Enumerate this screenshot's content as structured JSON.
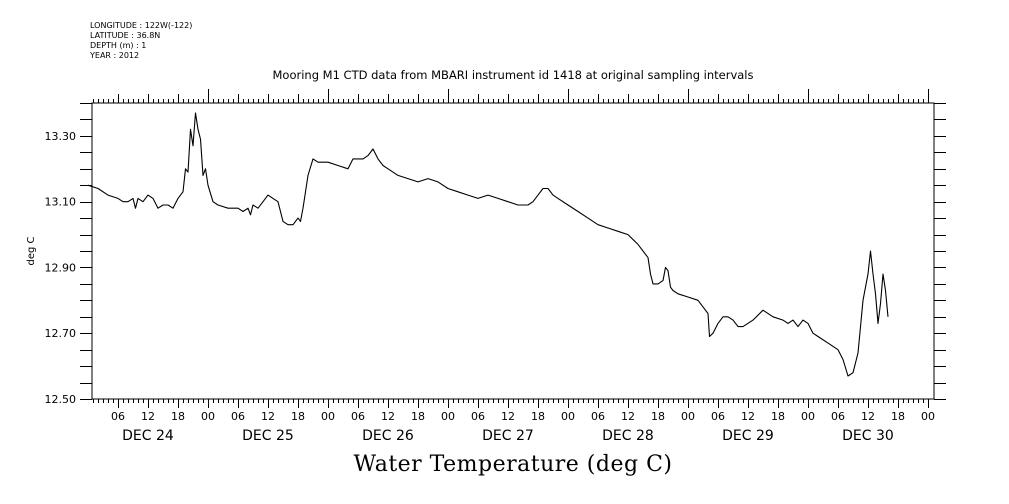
{
  "metadata": {
    "lines": [
      "LONGITUDE : 122W(-122)",
      "LATITUDE : 36.8N",
      "DEPTH (m) : 1",
      "YEAR : 2012"
    ]
  },
  "chart_data": {
    "type": "line",
    "title": "Mooring M1 CTD data from MBARI instrument id 1418 at original sampling intervals",
    "bottom_title": "Water Temperature (deg C)",
    "ylabel": "deg C",
    "xlabel": "",
    "ylim": [
      12.5,
      13.4
    ],
    "yticks": [
      12.5,
      12.7,
      12.9,
      13.1,
      13.3
    ],
    "ytick_labels": [
      "12.50",
      "12.70",
      "12.90",
      "13.10",
      "13.30"
    ],
    "x_unit": "hours",
    "xlim": [
      1,
      168
    ],
    "hour_ticks": [
      {
        "x": 6,
        "label": "06"
      },
      {
        "x": 12,
        "label": "12"
      },
      {
        "x": 18,
        "label": "18"
      },
      {
        "x": 24,
        "label": "00"
      },
      {
        "x": 30,
        "label": "06"
      },
      {
        "x": 36,
        "label": "12"
      },
      {
        "x": 42,
        "label": "18"
      },
      {
        "x": 48,
        "label": "00"
      },
      {
        "x": 54,
        "label": "06"
      },
      {
        "x": 60,
        "label": "12"
      },
      {
        "x": 66,
        "label": "18"
      },
      {
        "x": 72,
        "label": "00"
      },
      {
        "x": 78,
        "label": "06"
      },
      {
        "x": 84,
        "label": "12"
      },
      {
        "x": 90,
        "label": "18"
      },
      {
        "x": 96,
        "label": "00"
      },
      {
        "x": 102,
        "label": "06"
      },
      {
        "x": 108,
        "label": "12"
      },
      {
        "x": 114,
        "label": "18"
      },
      {
        "x": 120,
        "label": "00"
      },
      {
        "x": 126,
        "label": "06"
      },
      {
        "x": 132,
        "label": "12"
      },
      {
        "x": 138,
        "label": "18"
      },
      {
        "x": 144,
        "label": "00"
      },
      {
        "x": 150,
        "label": "06"
      },
      {
        "x": 156,
        "label": "12"
      },
      {
        "x": 162,
        "label": "18"
      },
      {
        "x": 168,
        "label": "00"
      }
    ],
    "day_labels": [
      {
        "x": 12,
        "label": "DEC 24"
      },
      {
        "x": 36,
        "label": "DEC 25"
      },
      {
        "x": 60,
        "label": "DEC 26"
      },
      {
        "x": 84,
        "label": "DEC 27"
      },
      {
        "x": 108,
        "label": "DEC 28"
      },
      {
        "x": 132,
        "label": "DEC 29"
      },
      {
        "x": 156,
        "label": "DEC 30"
      }
    ],
    "series": [
      {
        "color": "#000000",
        "points": [
          [
            0.0,
            13.15
          ],
          [
            2.0,
            13.14
          ],
          [
            4.0,
            13.12
          ],
          [
            6.0,
            13.11
          ],
          [
            7.0,
            13.1
          ],
          [
            8.0,
            13.1
          ],
          [
            9.0,
            13.11
          ],
          [
            9.5,
            13.08
          ],
          [
            10.0,
            13.11
          ],
          [
            11.0,
            13.1
          ],
          [
            12.0,
            13.12
          ],
          [
            13.0,
            13.11
          ],
          [
            14.0,
            13.08
          ],
          [
            15.0,
            13.09
          ],
          [
            16.0,
            13.09
          ],
          [
            17.0,
            13.08
          ],
          [
            18.0,
            13.11
          ],
          [
            19.0,
            13.13
          ],
          [
            19.5,
            13.2
          ],
          [
            20.0,
            13.19
          ],
          [
            20.5,
            13.32
          ],
          [
            21.0,
            13.27
          ],
          [
            21.5,
            13.37
          ],
          [
            22.0,
            13.32
          ],
          [
            22.5,
            13.29
          ],
          [
            23.0,
            13.18
          ],
          [
            23.5,
            13.2
          ],
          [
            24.0,
            13.15
          ],
          [
            25.0,
            13.1
          ],
          [
            26.0,
            13.09
          ],
          [
            28.0,
            13.08
          ],
          [
            30.0,
            13.08
          ],
          [
            31.0,
            13.07
          ],
          [
            32.0,
            13.08
          ],
          [
            32.5,
            13.06
          ],
          [
            33.0,
            13.09
          ],
          [
            34.0,
            13.08
          ],
          [
            35.0,
            13.1
          ],
          [
            36.0,
            13.12
          ],
          [
            37.0,
            13.11
          ],
          [
            38.0,
            13.1
          ],
          [
            39.0,
            13.04
          ],
          [
            40.0,
            13.03
          ],
          [
            41.0,
            13.03
          ],
          [
            42.0,
            13.05
          ],
          [
            42.5,
            13.04
          ],
          [
            43.0,
            13.08
          ],
          [
            44.0,
            13.18
          ],
          [
            45.0,
            13.23
          ],
          [
            46.0,
            13.22
          ],
          [
            47.0,
            13.22
          ],
          [
            48.0,
            13.22
          ],
          [
            50.0,
            13.21
          ],
          [
            52.0,
            13.2
          ],
          [
            53.0,
            13.23
          ],
          [
            54.0,
            13.23
          ],
          [
            55.0,
            13.23
          ],
          [
            56.0,
            13.24
          ],
          [
            57.0,
            13.26
          ],
          [
            58.0,
            13.23
          ],
          [
            59.0,
            13.21
          ],
          [
            60.0,
            13.2
          ],
          [
            62.0,
            13.18
          ],
          [
            64.0,
            13.17
          ],
          [
            66.0,
            13.16
          ],
          [
            68.0,
            13.17
          ],
          [
            70.0,
            13.16
          ],
          [
            72.0,
            13.14
          ],
          [
            74.0,
            13.13
          ],
          [
            76.0,
            13.12
          ],
          [
            78.0,
            13.11
          ],
          [
            80.0,
            13.12
          ],
          [
            82.0,
            13.11
          ],
          [
            84.0,
            13.1
          ],
          [
            86.0,
            13.09
          ],
          [
            88.0,
            13.09
          ],
          [
            89.0,
            13.1
          ],
          [
            90.0,
            13.12
          ],
          [
            91.0,
            13.14
          ],
          [
            92.0,
            13.14
          ],
          [
            93.0,
            13.12
          ],
          [
            94.0,
            13.11
          ],
          [
            96.0,
            13.09
          ],
          [
            98.0,
            13.07
          ],
          [
            100.0,
            13.05
          ],
          [
            102.0,
            13.03
          ],
          [
            104.0,
            13.02
          ],
          [
            106.0,
            13.01
          ],
          [
            108.0,
            13.0
          ],
          [
            110.0,
            12.97
          ],
          [
            112.0,
            12.93
          ],
          [
            112.5,
            12.88
          ],
          [
            113.0,
            12.85
          ],
          [
            114.0,
            12.85
          ],
          [
            115.0,
            12.86
          ],
          [
            115.5,
            12.9
          ],
          [
            116.0,
            12.89
          ],
          [
            116.5,
            12.84
          ],
          [
            117.0,
            12.83
          ],
          [
            118.0,
            12.82
          ],
          [
            120.0,
            12.81
          ],
          [
            122.0,
            12.8
          ],
          [
            123.0,
            12.78
          ],
          [
            124.0,
            12.76
          ],
          [
            124.3,
            12.69
          ],
          [
            125.0,
            12.7
          ],
          [
            126.0,
            12.73
          ],
          [
            127.0,
            12.75
          ],
          [
            128.0,
            12.75
          ],
          [
            129.0,
            12.74
          ],
          [
            130.0,
            12.72
          ],
          [
            131.0,
            12.72
          ],
          [
            133.0,
            12.74
          ],
          [
            135.0,
            12.77
          ],
          [
            137.0,
            12.75
          ],
          [
            139.0,
            12.74
          ],
          [
            140.0,
            12.73
          ],
          [
            141.0,
            12.74
          ],
          [
            142.0,
            12.72
          ],
          [
            143.0,
            12.74
          ],
          [
            144.0,
            12.73
          ],
          [
            145.0,
            12.7
          ],
          [
            146.0,
            12.69
          ],
          [
            148.0,
            12.67
          ],
          [
            150.0,
            12.65
          ],
          [
            151.0,
            12.62
          ],
          [
            152.0,
            12.57
          ],
          [
            153.0,
            12.58
          ],
          [
            154.0,
            12.64
          ],
          [
            155.0,
            12.8
          ],
          [
            156.0,
            12.88
          ],
          [
            156.5,
            12.95
          ],
          [
            157.0,
            12.88
          ],
          [
            157.5,
            12.82
          ],
          [
            158.0,
            12.73
          ],
          [
            158.5,
            12.79
          ],
          [
            159.0,
            12.88
          ],
          [
            159.5,
            12.83
          ],
          [
            160.0,
            12.75
          ]
        ]
      }
    ],
    "grid": false,
    "legend": "none"
  }
}
